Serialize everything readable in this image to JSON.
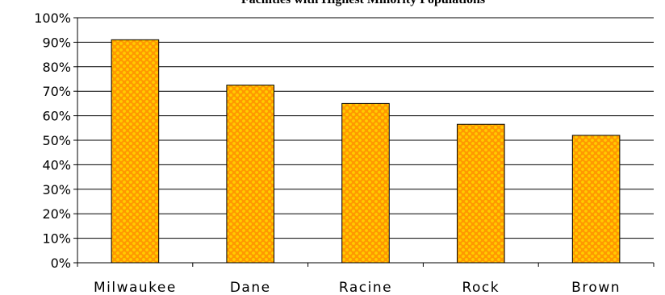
{
  "chart_data": {
    "type": "bar",
    "title": "Facilities with Highest Minority Populations",
    "categories": [
      "Milwaukee",
      "Dane",
      "Racine",
      "Rock",
      "Brown"
    ],
    "values": [
      91,
      72.5,
      65,
      56.5,
      52
    ],
    "ylim": [
      0,
      100
    ],
    "yticks": [
      "0%",
      "10%",
      "20%",
      "30%",
      "40%",
      "50%",
      "60%",
      "70%",
      "80%",
      "90%",
      "100%"
    ],
    "xlabel": "",
    "ylabel": "",
    "grid": true,
    "legend": "none",
    "bar_colors": {
      "base": "#FF9900",
      "pattern": "#FFCC00",
      "outline": "#000000"
    }
  }
}
